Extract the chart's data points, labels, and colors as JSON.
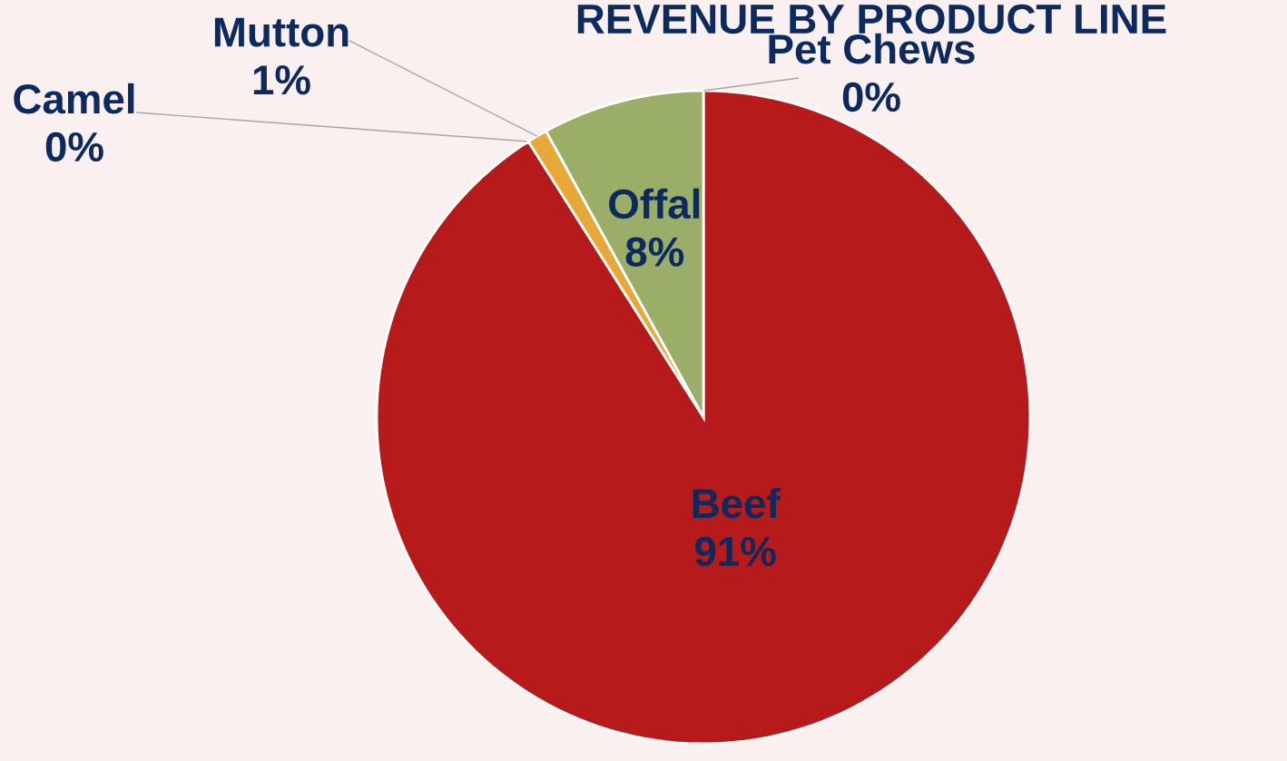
{
  "chart_data": {
    "type": "pie",
    "title": "REVENUE BY PRODUCT LINE",
    "categories": [
      "Beef",
      "Camel",
      "Mutton",
      "Offal",
      "Pet Chews"
    ],
    "values": [
      91,
      0,
      1,
      8,
      0
    ],
    "value_labels": [
      "91%",
      "0%",
      "1%",
      "8%",
      "0%"
    ],
    "colors": [
      "#b71a1a",
      "#4f81bd",
      "#e6a937",
      "#9aae68",
      "#5fb8a8"
    ]
  }
}
